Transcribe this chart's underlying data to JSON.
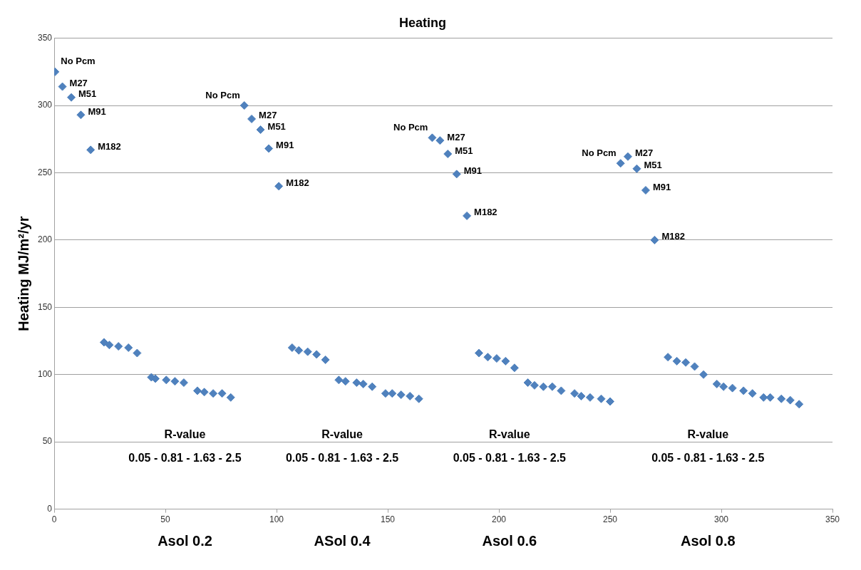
{
  "chart_data": {
    "type": "scatter",
    "title": "Heating",
    "ylabel": "Heating MJ/m²/yr",
    "x": [
      0.4,
      3.7,
      7.7,
      12,
      16.4,
      85.5,
      88.8,
      92.8,
      96.5,
      101,
      170,
      173.5,
      177,
      181,
      185.6,
      254.7,
      258,
      262,
      266,
      270,
      22.4,
      24.8,
      28.9,
      33.4,
      37.3,
      43.7,
      45.5,
      50.4,
      54.3,
      58.3,
      64.4,
      67.5,
      71.5,
      75.5,
      79.4,
      107,
      110,
      114,
      118,
      122,
      128,
      131,
      136,
      139,
      143,
      149,
      152,
      156,
      160,
      164,
      191,
      195,
      199,
      203,
      207,
      213,
      216,
      220,
      224,
      228,
      234,
      237,
      241,
      246,
      250,
      276,
      280,
      284,
      288,
      292,
      298,
      301,
      305,
      310,
      314,
      319,
      322,
      327,
      331,
      335
    ],
    "values": [
      325,
      314,
      306,
      293,
      267,
      300,
      290,
      282,
      268,
      240,
      276,
      274,
      264,
      249,
      218,
      257,
      262,
      253,
      237,
      200,
      124,
      122,
      121,
      120,
      116,
      98,
      97,
      96,
      95,
      94,
      88,
      87,
      86,
      86,
      83,
      120,
      118,
      117,
      115,
      111,
      96,
      95,
      94,
      93,
      91,
      86,
      86,
      85,
      84,
      82,
      116,
      113,
      112,
      110,
      105,
      94,
      92,
      91,
      91,
      88,
      86,
      84,
      83,
      82,
      80,
      113,
      110,
      109,
      106,
      100,
      93,
      91,
      90,
      88,
      86,
      83,
      83,
      82,
      81,
      78
    ],
    "color": "#4f81bd",
    "marker": "diamond",
    "xlim": [
      0,
      350
    ],
    "xticks": [
      0,
      50,
      100,
      150,
      200,
      250,
      300,
      350
    ],
    "ylim": [
      0,
      350
    ],
    "yticks": [
      0,
      50,
      100,
      150,
      200,
      250,
      300,
      350
    ],
    "grid": "y",
    "legend": false,
    "annotations": [
      {
        "text": "No Pcm",
        "x": 0.4,
        "y": 325
      },
      {
        "text": "M27",
        "x": 3.7,
        "y": 314
      },
      {
        "text": "M51",
        "x": 7.7,
        "y": 306
      },
      {
        "text": "M91",
        "x": 12,
        "y": 293
      },
      {
        "text": "M182",
        "x": 16.4,
        "y": 267
      },
      {
        "text": "No Pcm",
        "x": 85.5,
        "y": 300
      },
      {
        "text": "M27",
        "x": 88.8,
        "y": 290
      },
      {
        "text": "M51",
        "x": 92.8,
        "y": 282
      },
      {
        "text": "M91",
        "x": 96.5,
        "y": 268
      },
      {
        "text": "M182",
        "x": 101,
        "y": 240
      },
      {
        "text": "No Pcm",
        "x": 170,
        "y": 276
      },
      {
        "text": "M27",
        "x": 173.5,
        "y": 274
      },
      {
        "text": "M51",
        "x": 177,
        "y": 264
      },
      {
        "text": "M91",
        "x": 181,
        "y": 249
      },
      {
        "text": "M182",
        "x": 185.6,
        "y": 218
      },
      {
        "text": "No Pcm",
        "x": 254.7,
        "y": 257
      },
      {
        "text": "M27",
        "x": 258,
        "y": 262
      },
      {
        "text": "M51",
        "x": 262,
        "y": 253
      },
      {
        "text": "M91",
        "x": 266,
        "y": 237
      },
      {
        "text": "M182",
        "x": 270,
        "y": 200
      },
      "R-value",
      "R-value",
      "R-value",
      "R-value",
      "0.05 - 0.81 - 1.63 - 2.5",
      "0.05 - 0.81 - 1.63 - 2.5",
      "0.05 - 0.81 - 1.63 - 2.5",
      "0.05 - 0.81 - 1.63 - 2.5",
      "Asol 0.2",
      "ASol 0.4",
      "Asol 0.6",
      "Asol 0.8"
    ]
  }
}
